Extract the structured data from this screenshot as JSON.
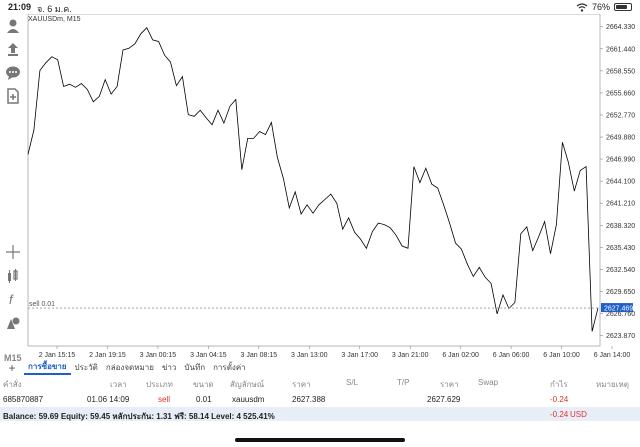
{
  "status_bar": {
    "time": "21:09",
    "date": "จ. 6 ม.ค.",
    "battery": "76%",
    "battery_level": 0.76
  },
  "chart": {
    "symbol_label": "XAUUSDm, M15",
    "order_line_label": "sell 0.01",
    "current_price": "2627.469",
    "line_color": "#000000",
    "price_tag_color": "#1e5fc8"
  },
  "sidebar": {
    "icons": [
      "user-icon",
      "upload-icon",
      "chat-icon",
      "add-document-icon",
      "crosshair-icon",
      "indicators-icon",
      "function-icon",
      "objects-icon"
    ],
    "timeframe": "M15"
  },
  "chart_data": {
    "type": "line",
    "y_ticks": [
      "2664.330",
      "2661.440",
      "2658.550",
      "2655.660",
      "2652.770",
      "2649.880",
      "2646.990",
      "2644.100",
      "2641.210",
      "2638.320",
      "2635.430",
      "2632.540",
      "2629.650",
      "2626.760",
      "2623.870"
    ],
    "x_ticks": [
      "2 Jan 15:15",
      "2 Jan 19:15",
      "3 Jan 00:15",
      "3 Jan 04:15",
      "3 Jan 08:15",
      "3 Jan 13:00",
      "3 Jan 17:00",
      "3 Jan 21:00",
      "6 Jan 02:00",
      "6 Jan 06:00",
      "6 Jan 10:00",
      "6 Jan 14:00"
    ],
    "ylim": [
      2622.5,
      2666.0
    ],
    "y": [
      2647.6,
      2650.8,
      2658.6,
      2659.6,
      2660.4,
      2660.0,
      2656.5,
      2656.8,
      2656.4,
      2656.9,
      2656.1,
      2654.5,
      2655.2,
      2657.4,
      2655.5,
      2656.5,
      2661.3,
      2661.5,
      2662.1,
      2663.4,
      2664.2,
      2662.6,
      2662.4,
      2660.6,
      2659.7,
      2656.6,
      2657.8,
      2652.8,
      2652.6,
      2653.4,
      2652.4,
      2651.5,
      2653.4,
      2651.7,
      2653.9,
      2654.8,
      2645.6,
      2649.7,
      2649.7,
      2650.6,
      2650.2,
      2651.8,
      2647.2,
      2644.5,
      2640.6,
      2642.7,
      2639.8,
      2641.0,
      2639.9,
      2641.0,
      2641.7,
      2642.4,
      2641.2,
      2637.8,
      2639.3,
      2637.4,
      2636.5,
      2635.3,
      2637.5,
      2638.6,
      2638.4,
      2638.0,
      2637.0,
      2635.6,
      2635.3,
      2646.0,
      2643.9,
      2645.8,
      2643.7,
      2643.2,
      2641.0,
      2638.6,
      2636.0,
      2635.2,
      2633.2,
      2631.6,
      2632.8,
      2631.5,
      2630.7,
      2626.7,
      2629.2,
      2627.4,
      2628.2,
      2637.2,
      2638.1,
      2635.0,
      2636.8,
      2638.8,
      2634.6,
      2638.4,
      2649.2,
      2646.6,
      2642.8,
      2645.5,
      2646.0,
      2624.4,
      2627.5
    ]
  },
  "tabs": [
    {
      "label": "การซื้อขาย",
      "active": true
    },
    {
      "label": "ประวัติ",
      "active": false
    },
    {
      "label": "กล่องจดหมาย",
      "active": false
    },
    {
      "label": "ข่าว",
      "active": false
    },
    {
      "label": "บันทึก",
      "active": false
    },
    {
      "label": "การตั้งค่า",
      "active": false
    }
  ],
  "table": {
    "headers": [
      "คำสั่ง",
      "เวลา",
      "ประเภท",
      "ขนาด",
      "สัญลักษณ์",
      "ราคา",
      "S/L",
      "T/P",
      "ราคา",
      "Swap",
      "กำไร",
      "หมายเหตุ"
    ],
    "row": {
      "order": "685870887",
      "time": "01.06 14:09",
      "type": "sell",
      "size": "0.01",
      "symbol": "xauusdm",
      "open_price": "2627.388",
      "sl": "",
      "tp": "",
      "price": "2627.629",
      "swap": "",
      "profit": "-0.24",
      "comment": ""
    }
  },
  "summary": {
    "text": "Balance: 59.69 Equity: 59.45 หลักประกัน: 1.31 ฟรี: 58.14 Level: 4 525.41%",
    "profit": "-0.24",
    "currency": "USD"
  }
}
